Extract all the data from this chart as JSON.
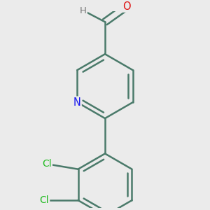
{
  "background_color": "#ebebeb",
  "bond_color": "#4a7a6a",
  "bond_width": 1.8,
  "atom_colors": {
    "N": "#1a1aee",
    "O": "#dd1111",
    "Cl": "#22bb22",
    "H": "#777777"
  },
  "font_size": 10.5,
  "fig_width": 3.0,
  "fig_height": 3.0,
  "dpi": 100,
  "xlim": [
    -1.5,
    1.5
  ],
  "ylim": [
    -2.0,
    1.8
  ]
}
